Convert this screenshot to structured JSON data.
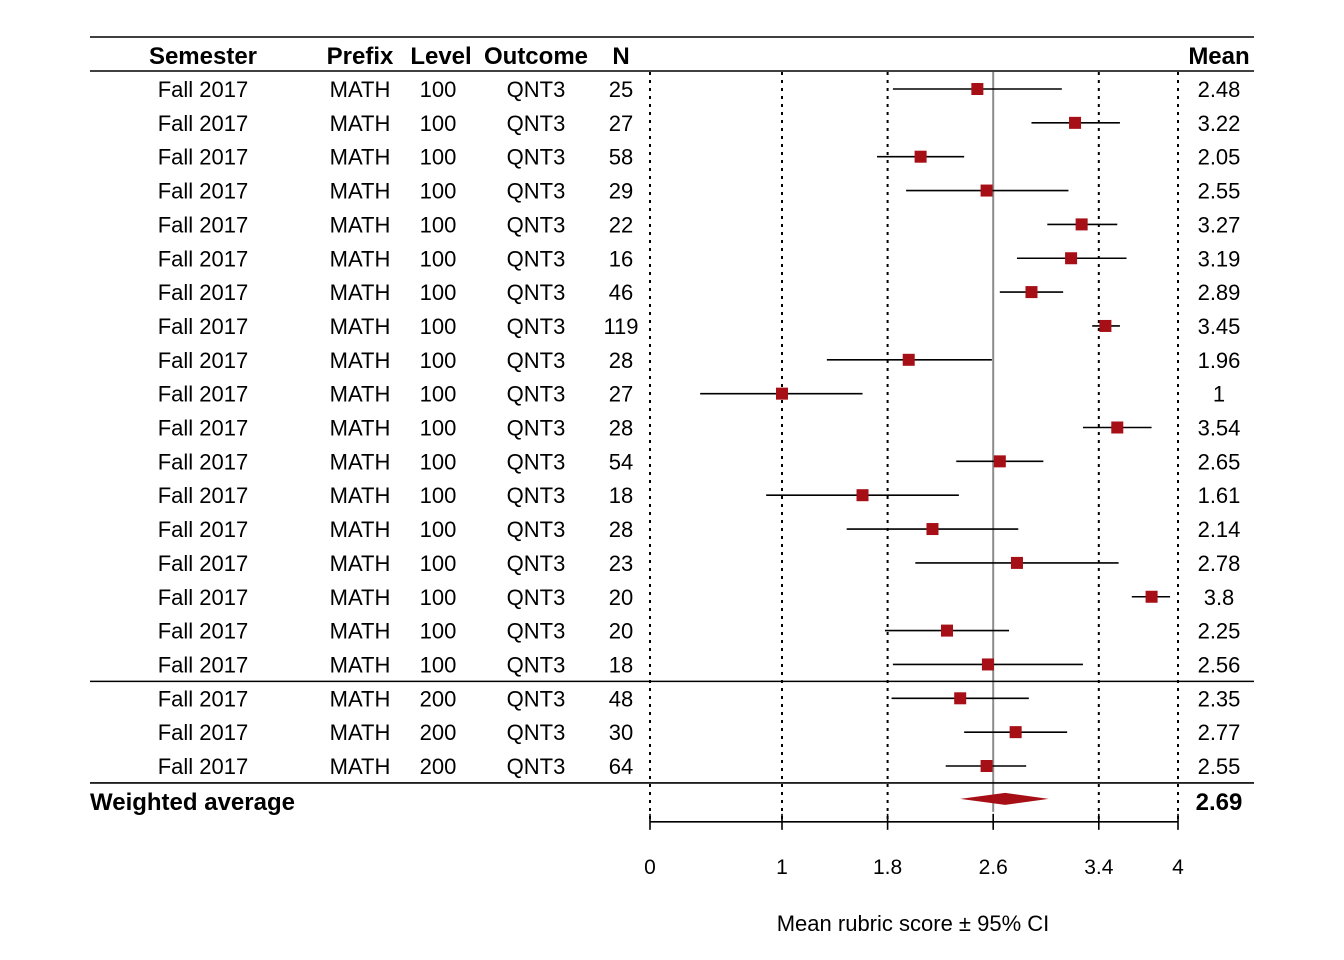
{
  "headers": {
    "semester": "Semester",
    "prefix": "Prefix",
    "level": "Level",
    "outcome": "Outcome",
    "n": "N",
    "mean": "Mean"
  },
  "chart_data": {
    "type": "forest",
    "xlabel": "Mean rubric score ± 95% CI",
    "xlim": [
      0,
      4
    ],
    "x_ticks": [
      0,
      1,
      1.8,
      2.6,
      3.4,
      4
    ],
    "x_tick_labels": [
      "0",
      "1",
      "1.8",
      "2.6",
      "3.4",
      "4"
    ],
    "dotted_reference_lines": [
      0,
      1,
      1.8,
      3.4,
      4
    ],
    "average_reference_line": 2.6,
    "colors": {
      "marker": "#a50f15",
      "ci_line": "#000000",
      "reference_line": "#8c8c8c"
    },
    "groups": [
      {
        "rows": [
          {
            "semester": "Fall 2017",
            "prefix": "MATH",
            "level": "100",
            "outcome": "QNT3",
            "n": "25",
            "mean": 2.48,
            "mean_label": "2.48",
            "ci": [
              1.84,
              3.12
            ]
          },
          {
            "semester": "Fall 2017",
            "prefix": "MATH",
            "level": "100",
            "outcome": "QNT3",
            "n": "27",
            "mean": 3.22,
            "mean_label": "3.22",
            "ci": [
              2.89,
              3.56
            ]
          },
          {
            "semester": "Fall 2017",
            "prefix": "MATH",
            "level": "100",
            "outcome": "QNT3",
            "n": "58",
            "mean": 2.05,
            "mean_label": "2.05",
            "ci": [
              1.72,
              2.38
            ]
          },
          {
            "semester": "Fall 2017",
            "prefix": "MATH",
            "level": "100",
            "outcome": "QNT3",
            "n": "29",
            "mean": 2.55,
            "mean_label": "2.55",
            "ci": [
              1.94,
              3.17
            ]
          },
          {
            "semester": "Fall 2017",
            "prefix": "MATH",
            "level": "100",
            "outcome": "QNT3",
            "n": "22",
            "mean": 3.27,
            "mean_label": "3.27",
            "ci": [
              3.01,
              3.54
            ]
          },
          {
            "semester": "Fall 2017",
            "prefix": "MATH",
            "level": "100",
            "outcome": "QNT3",
            "n": "16",
            "mean": 3.19,
            "mean_label": "3.19",
            "ci": [
              2.78,
              3.61
            ]
          },
          {
            "semester": "Fall 2017",
            "prefix": "MATH",
            "level": "100",
            "outcome": "QNT3",
            "n": "46",
            "mean": 2.89,
            "mean_label": "2.89",
            "ci": [
              2.65,
              3.13
            ]
          },
          {
            "semester": "Fall 2017",
            "prefix": "MATH",
            "level": "100",
            "outcome": "QNT3",
            "n": "119",
            "mean": 3.45,
            "mean_label": "3.45",
            "ci": [
              3.35,
              3.56
            ]
          },
          {
            "semester": "Fall 2017",
            "prefix": "MATH",
            "level": "100",
            "outcome": "QNT3",
            "n": "28",
            "mean": 1.96,
            "mean_label": "1.96",
            "ci": [
              1.34,
              2.59
            ]
          },
          {
            "semester": "Fall 2017",
            "prefix": "MATH",
            "level": "100",
            "outcome": "QNT3",
            "n": "27",
            "mean": 1,
            "mean_label": "1",
            "ci": [
              0.38,
              1.61
            ]
          },
          {
            "semester": "Fall 2017",
            "prefix": "MATH",
            "level": "100",
            "outcome": "QNT3",
            "n": "28",
            "mean": 3.54,
            "mean_label": "3.54",
            "ci": [
              3.28,
              3.8
            ]
          },
          {
            "semester": "Fall 2017",
            "prefix": "MATH",
            "level": "100",
            "outcome": "QNT3",
            "n": "54",
            "mean": 2.65,
            "mean_label": "2.65",
            "ci": [
              2.32,
              2.98
            ]
          },
          {
            "semester": "Fall 2017",
            "prefix": "MATH",
            "level": "100",
            "outcome": "QNT3",
            "n": "18",
            "mean": 1.61,
            "mean_label": "1.61",
            "ci": [
              0.88,
              2.34
            ]
          },
          {
            "semester": "Fall 2017",
            "prefix": "MATH",
            "level": "100",
            "outcome": "QNT3",
            "n": "28",
            "mean": 2.14,
            "mean_label": "2.14",
            "ci": [
              1.49,
              2.79
            ]
          },
          {
            "semester": "Fall 2017",
            "prefix": "MATH",
            "level": "100",
            "outcome": "QNT3",
            "n": "23",
            "mean": 2.78,
            "mean_label": "2.78",
            "ci": [
              2.01,
              3.55
            ]
          },
          {
            "semester": "Fall 2017",
            "prefix": "MATH",
            "level": "100",
            "outcome": "QNT3",
            "n": "20",
            "mean": 3.8,
            "mean_label": "3.8",
            "ci": [
              3.65,
              3.94
            ]
          },
          {
            "semester": "Fall 2017",
            "prefix": "MATH",
            "level": "100",
            "outcome": "QNT3",
            "n": "20",
            "mean": 2.25,
            "mean_label": "2.25",
            "ci": [
              1.78,
              2.72
            ]
          },
          {
            "semester": "Fall 2017",
            "prefix": "MATH",
            "level": "100",
            "outcome": "QNT3",
            "n": "18",
            "mean": 2.56,
            "mean_label": "2.56",
            "ci": [
              1.84,
              3.28
            ]
          }
        ]
      },
      {
        "rows": [
          {
            "semester": "Fall 2017",
            "prefix": "MATH",
            "level": "200",
            "outcome": "QNT3",
            "n": "48",
            "mean": 2.35,
            "mean_label": "2.35",
            "ci": [
              1.83,
              2.87
            ]
          },
          {
            "semester": "Fall 2017",
            "prefix": "MATH",
            "level": "200",
            "outcome": "QNT3",
            "n": "30",
            "mean": 2.77,
            "mean_label": "2.77",
            "ci": [
              2.38,
              3.16
            ]
          },
          {
            "semester": "Fall 2017",
            "prefix": "MATH",
            "level": "200",
            "outcome": "QNT3",
            "n": "64",
            "mean": 2.55,
            "mean_label": "2.55",
            "ci": [
              2.24,
              2.85
            ]
          }
        ]
      }
    ],
    "summary": {
      "label": "Weighted average",
      "mean": 2.69,
      "mean_label": "2.69",
      "ci": [
        2.35,
        3.02
      ]
    }
  }
}
